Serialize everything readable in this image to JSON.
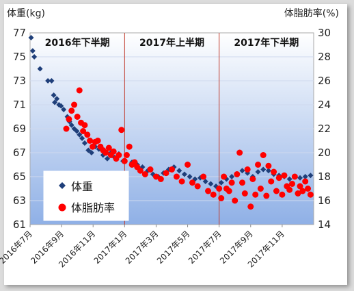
{
  "chart_data": {
    "type": "scatter",
    "y_left_label": "体重(kg)",
    "y_right_label": "体脂肪率(%)",
    "y_left_ticks": [
      "77",
      "75",
      "73",
      "71",
      "69",
      "67",
      "65",
      "63",
      "61"
    ],
    "y_right_ticks": [
      "30",
      "28",
      "26",
      "24",
      "22",
      "20",
      "18",
      "16",
      "14"
    ],
    "y_left_range": [
      61,
      77
    ],
    "y_right_range": [
      14,
      30
    ],
    "x_ticks": [
      "2016年7月",
      "2016年9月",
      "2016年11月",
      "2017年1月",
      "2017年3月",
      "2017年5月",
      "2017年7月",
      "2017年9月",
      "2017年11月"
    ],
    "x_range_months": [
      "2016-07",
      "2018-01"
    ],
    "periods": [
      "2016年下半期",
      "2017年上半期",
      "2017年下半期"
    ],
    "period_boundaries": [
      "2017-01",
      "2017-07"
    ],
    "legend": [
      "体重",
      "体脂肪率"
    ],
    "legend_position": "bottom-left",
    "series": [
      {
        "name": "体重",
        "color": "#1f3f7a",
        "marker": "diamond",
        "axis": "left",
        "points": [
          [
            "2016-07-03",
            76.6
          ],
          [
            "2016-07-06",
            75.5
          ],
          [
            "2016-07-09",
            75.0
          ],
          [
            "2016-07-20",
            74.0
          ],
          [
            "2016-08-05",
            73.0
          ],
          [
            "2016-08-12",
            73.0
          ],
          [
            "2016-08-16",
            71.8
          ],
          [
            "2016-08-18",
            71.2
          ],
          [
            "2016-08-22",
            71.5
          ],
          [
            "2016-08-26",
            71.0
          ],
          [
            "2016-08-30",
            70.9
          ],
          [
            "2016-09-05",
            70.6
          ],
          [
            "2016-09-12",
            70.0
          ],
          [
            "2016-09-16",
            69.6
          ],
          [
            "2016-09-20",
            69.3
          ],
          [
            "2016-09-25",
            69.0
          ],
          [
            "2016-09-30",
            68.8
          ],
          [
            "2016-10-05",
            68.5
          ],
          [
            "2016-10-10",
            68.2
          ],
          [
            "2016-10-15",
            67.8
          ],
          [
            "2016-10-22",
            67.2
          ],
          [
            "2016-10-28",
            67.0
          ],
          [
            "2016-11-05",
            67.5
          ],
          [
            "2016-11-12",
            67.3
          ],
          [
            "2016-11-20",
            66.8
          ],
          [
            "2016-11-28",
            66.5
          ],
          [
            "2016-12-05",
            67.0
          ],
          [
            "2016-12-12",
            66.6
          ],
          [
            "2016-12-20",
            66.9
          ],
          [
            "2016-12-28",
            66.3
          ],
          [
            "2017-01-05",
            66.8
          ],
          [
            "2017-01-15",
            66.2
          ],
          [
            "2017-01-25",
            66.0
          ],
          [
            "2017-02-05",
            65.8
          ],
          [
            "2017-02-15",
            65.5
          ],
          [
            "2017-02-25",
            65.2
          ],
          [
            "2017-03-05",
            65.0
          ],
          [
            "2017-03-15",
            65.3
          ],
          [
            "2017-03-25",
            65.6
          ],
          [
            "2017-04-05",
            65.8
          ],
          [
            "2017-04-15",
            65.5
          ],
          [
            "2017-04-25",
            65.2
          ],
          [
            "2017-05-05",
            65.0
          ],
          [
            "2017-05-15",
            64.8
          ],
          [
            "2017-05-25",
            64.9
          ],
          [
            "2017-06-05",
            64.6
          ],
          [
            "2017-06-15",
            64.4
          ],
          [
            "2017-06-25",
            64.2
          ],
          [
            "2017-07-05",
            64.5
          ],
          [
            "2017-07-15",
            64.8
          ],
          [
            "2017-07-25",
            65.0
          ],
          [
            "2017-08-05",
            65.2
          ],
          [
            "2017-08-15",
            65.5
          ],
          [
            "2017-08-25",
            65.3
          ],
          [
            "2017-09-05",
            65.0
          ],
          [
            "2017-09-15",
            65.4
          ],
          [
            "2017-09-25",
            65.6
          ],
          [
            "2017-10-05",
            65.5
          ],
          [
            "2017-10-15",
            65.2
          ],
          [
            "2017-10-25",
            65.1
          ],
          [
            "2017-11-05",
            65.0
          ],
          [
            "2017-11-15",
            64.8
          ],
          [
            "2017-11-25",
            65.0
          ],
          [
            "2017-12-05",
            64.9
          ],
          [
            "2017-12-15",
            65.0
          ],
          [
            "2017-12-25",
            65.1
          ]
        ]
      },
      {
        "name": "体脂肪率",
        "color": "#ff0000",
        "marker": "circle",
        "axis": "right",
        "points": [
          [
            "2016-09-10",
            22.0
          ],
          [
            "2016-09-15",
            22.8
          ],
          [
            "2016-09-20",
            23.5
          ],
          [
            "2016-09-25",
            24.0
          ],
          [
            "2016-10-01",
            23.0
          ],
          [
            "2016-10-05",
            25.2
          ],
          [
            "2016-10-08",
            22.5
          ],
          [
            "2016-10-12",
            21.8
          ],
          [
            "2016-10-15",
            22.3
          ],
          [
            "2016-10-20",
            21.5
          ],
          [
            "2016-10-25",
            21.0
          ],
          [
            "2016-10-30",
            20.5
          ],
          [
            "2016-11-05",
            20.9
          ],
          [
            "2016-11-10",
            21.0
          ],
          [
            "2016-11-15",
            20.5
          ],
          [
            "2016-11-20",
            20.2
          ],
          [
            "2016-11-25",
            20.0
          ],
          [
            "2016-12-01",
            20.4
          ],
          [
            "2016-12-05",
            19.8
          ],
          [
            "2016-12-10",
            20.1
          ],
          [
            "2016-12-15",
            19.5
          ],
          [
            "2016-12-20",
            19.8
          ],
          [
            "2016-12-25",
            21.9
          ],
          [
            "2017-01-01",
            19.3
          ],
          [
            "2017-01-05",
            19.8
          ],
          [
            "2017-01-10",
            20.5
          ],
          [
            "2017-01-15",
            19.0
          ],
          [
            "2017-01-20",
            19.2
          ],
          [
            "2017-01-25",
            18.8
          ],
          [
            "2017-02-01",
            18.5
          ],
          [
            "2017-02-10",
            18.2
          ],
          [
            "2017-02-20",
            18.6
          ],
          [
            "2017-03-01",
            18.0
          ],
          [
            "2017-03-10",
            17.8
          ],
          [
            "2017-03-20",
            18.3
          ],
          [
            "2017-04-01",
            18.6
          ],
          [
            "2017-04-10",
            18.0
          ],
          [
            "2017-04-20",
            17.6
          ],
          [
            "2017-05-01",
            19.0
          ],
          [
            "2017-05-10",
            17.5
          ],
          [
            "2017-05-20",
            17.2
          ],
          [
            "2017-06-01",
            18.0
          ],
          [
            "2017-06-10",
            16.8
          ],
          [
            "2017-06-20",
            16.5
          ],
          [
            "2017-07-01",
            17.0
          ],
          [
            "2017-07-05",
            16.2
          ],
          [
            "2017-07-10",
            18.0
          ],
          [
            "2017-07-15",
            17.0
          ],
          [
            "2017-07-20",
            16.8
          ],
          [
            "2017-07-25",
            17.5
          ],
          [
            "2017-08-01",
            16.0
          ],
          [
            "2017-08-05",
            18.2
          ],
          [
            "2017-08-10",
            20.0
          ],
          [
            "2017-08-15",
            17.5
          ],
          [
            "2017-08-20",
            16.6
          ],
          [
            "2017-08-25",
            18.6
          ],
          [
            "2017-09-01",
            15.5
          ],
          [
            "2017-09-05",
            17.8
          ],
          [
            "2017-09-10",
            16.5
          ],
          [
            "2017-09-15",
            19.0
          ],
          [
            "2017-09-20",
            17.0
          ],
          [
            "2017-09-25",
            19.8
          ],
          [
            "2017-10-01",
            16.4
          ],
          [
            "2017-10-05",
            18.9
          ],
          [
            "2017-10-10",
            17.6
          ],
          [
            "2017-10-15",
            18.4
          ],
          [
            "2017-10-20",
            16.8
          ],
          [
            "2017-10-25",
            17.9
          ],
          [
            "2017-11-01",
            16.5
          ],
          [
            "2017-11-05",
            18.1
          ],
          [
            "2017-11-10",
            17.2
          ],
          [
            "2017-11-15",
            16.9
          ],
          [
            "2017-11-20",
            17.4
          ],
          [
            "2017-11-25",
            18.0
          ],
          [
            "2017-12-01",
            16.6
          ],
          [
            "2017-12-05",
            17.2
          ],
          [
            "2017-12-10",
            16.8
          ],
          [
            "2017-12-15",
            17.6
          ],
          [
            "2017-12-20",
            17.0
          ],
          [
            "2017-12-25",
            16.5
          ]
        ]
      }
    ]
  }
}
